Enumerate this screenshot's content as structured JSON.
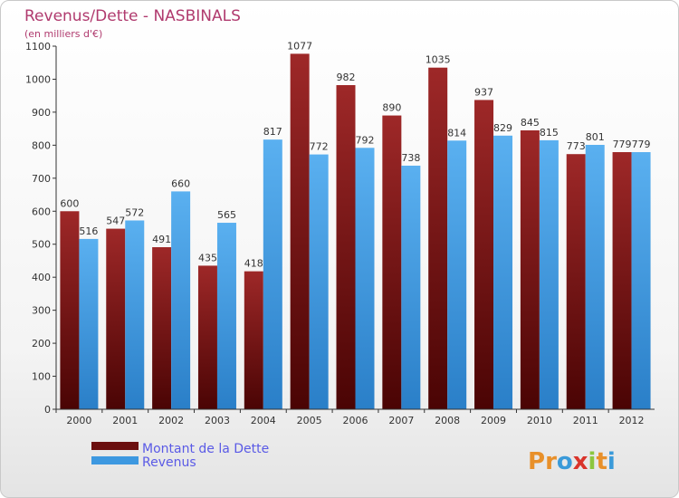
{
  "chart_data": {
    "type": "bar",
    "title": "Revenus/Dette - NASBINALS",
    "subtitle": "(en milliers d'€)",
    "categories": [
      "2000",
      "2001",
      "2002",
      "2003",
      "2004",
      "2005",
      "2006",
      "2007",
      "2008",
      "2009",
      "2010",
      "2011",
      "2012"
    ],
    "series": [
      {
        "name": "Montant de la Dette",
        "color": "#7a1616",
        "values": [
          600,
          547,
          491,
          435,
          418,
          1077,
          982,
          890,
          1035,
          937,
          845,
          773,
          779
        ]
      },
      {
        "name": "Revenus",
        "color": "#3d98e0",
        "values": [
          516,
          572,
          660,
          565,
          817,
          772,
          792,
          738,
          814,
          829,
          815,
          801,
          779
        ]
      }
    ],
    "ylim": [
      0,
      1100
    ],
    "yticks": [
      0,
      100,
      200,
      300,
      400,
      500,
      600,
      700,
      800,
      900,
      1000,
      1100
    ],
    "grid": false,
    "legend_position": "bottom-left"
  },
  "logo": {
    "text": "Proxiti",
    "letters": [
      "P",
      "r",
      "o",
      "x",
      "i",
      "t",
      "i"
    ]
  },
  "colors": {
    "title": "#b03a6e",
    "legend_text": "#5a5ae6",
    "axis": "#333333"
  }
}
